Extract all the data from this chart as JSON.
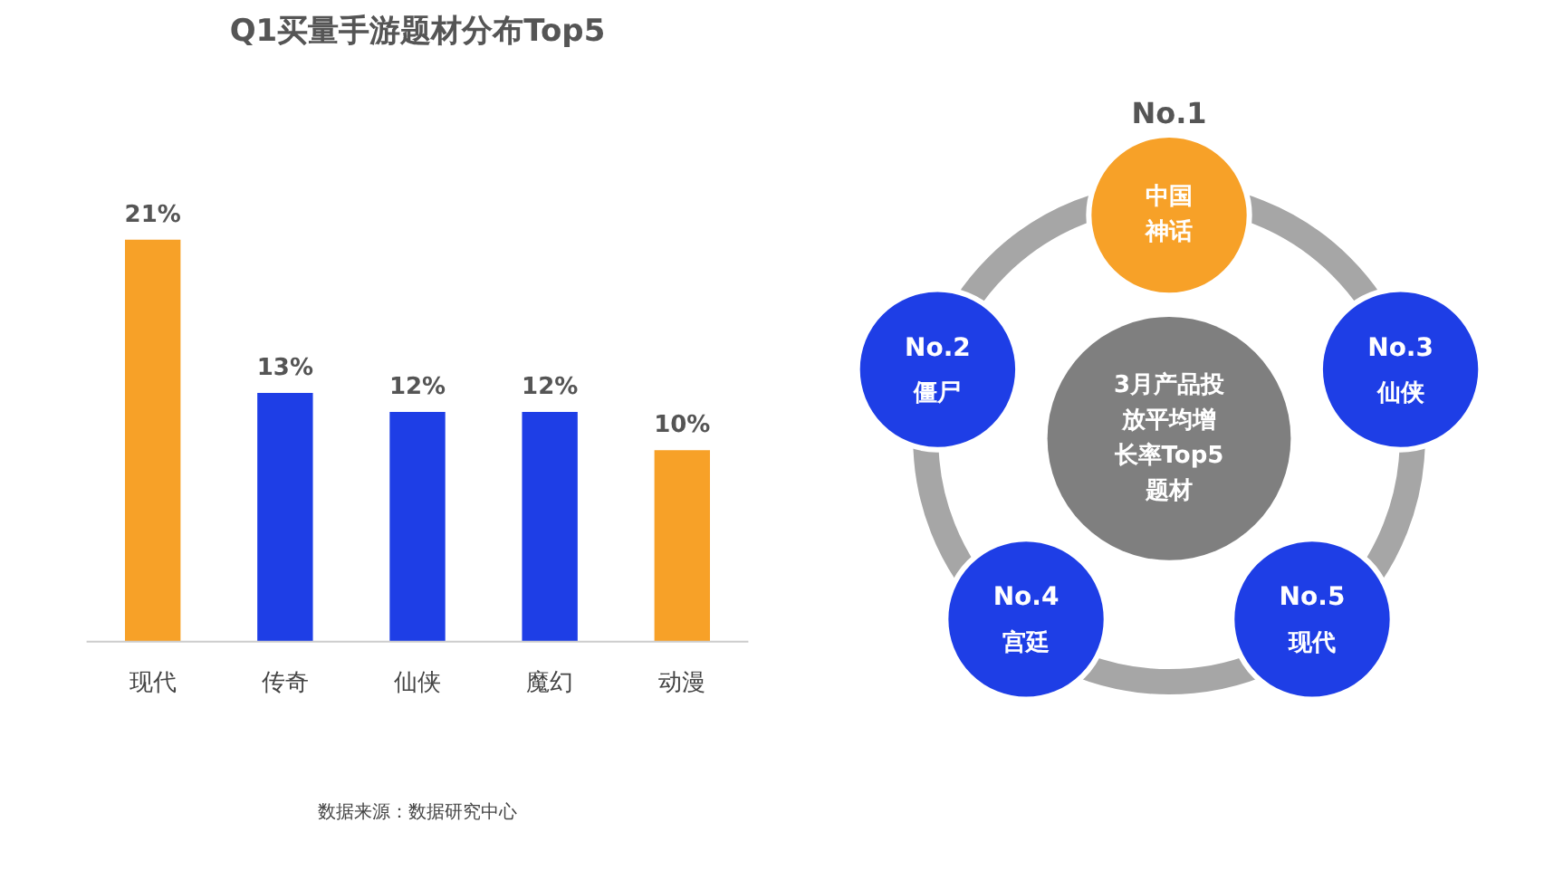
{
  "chart_data": [
    {
      "type": "bar",
      "title": "Q1买量手游题材分布Top5",
      "categories": [
        "现代",
        "传奇",
        "仙侠",
        "魔幻",
        "动漫"
      ],
      "values": [
        21,
        13,
        12,
        12,
        10
      ],
      "colors": [
        "#f7a128",
        "#1e3ee6",
        "#1e3ee6",
        "#1e3ee6",
        "#f7a128"
      ],
      "value_labels": [
        "21%",
        "13%",
        "12%",
        "12%",
        "10%"
      ],
      "grid": false,
      "annotations": [
        "数据来源：数据研究中心"
      ]
    },
    {
      "type": "other",
      "title": "3月产品投放平均增长率Top5题材",
      "categories": [
        "中国神话",
        "僵尸",
        "仙侠",
        "宫廷",
        "现代"
      ],
      "colors": [
        "#f7a128",
        "#1e3ee6",
        "#1e3ee6",
        "#1e3ee6",
        "#1e3ee6"
      ],
      "annotations": [
        "No.1",
        "No.2",
        "No.3",
        "No.4",
        "No.5"
      ]
    }
  ]
}
